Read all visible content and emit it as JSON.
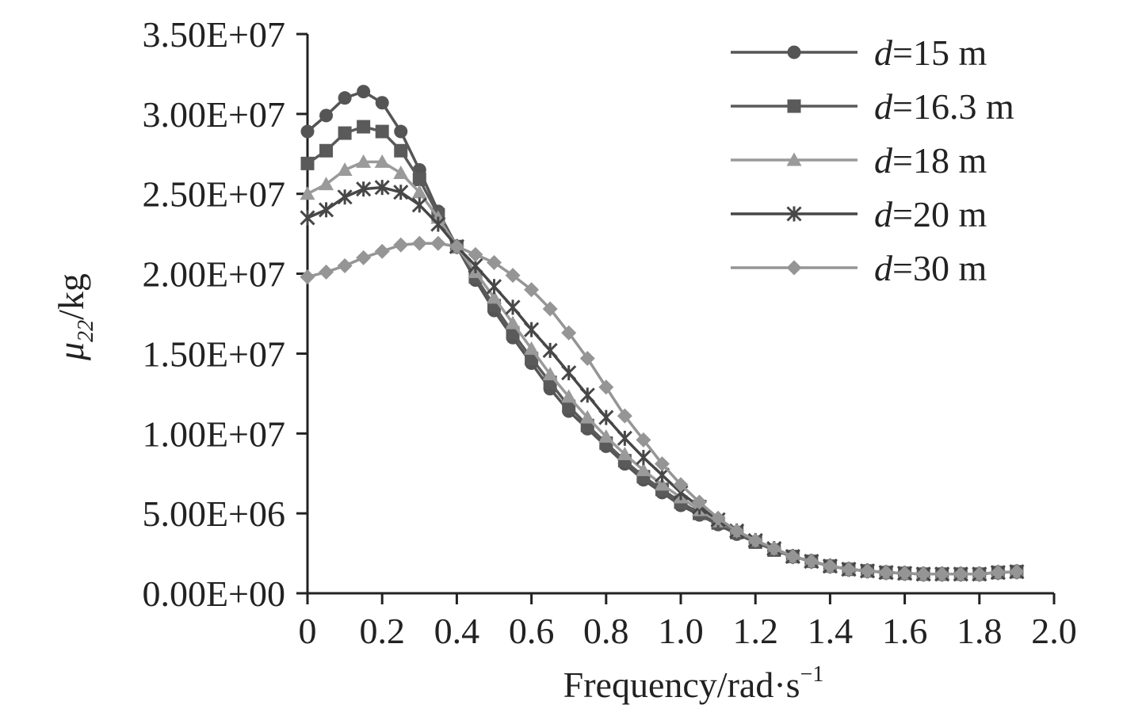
{
  "chart_data": {
    "type": "line",
    "title": "",
    "xlabel": "Frequency/rad·s",
    "xlabel_sup": "−1",
    "ylabel": "μ₂₂/kg",
    "ylabel_symbol": "μ",
    "ylabel_sub": "22",
    "ylabel_unit": "/kg",
    "xlim": [
      0,
      2.0
    ],
    "ylim": [
      0,
      35000000
    ],
    "x_ticks": [
      0,
      0.2,
      0.4,
      0.6,
      0.8,
      1.0,
      1.2,
      1.4,
      1.6,
      1.8,
      2.0
    ],
    "x_tick_labels": [
      "0",
      "0.2",
      "0.4",
      "0.6",
      "0.8",
      "1.0",
      "1.2",
      "1.4",
      "1.6",
      "1.8",
      "2.0"
    ],
    "y_ticks": [
      0,
      5000000,
      10000000,
      15000000,
      20000000,
      25000000,
      30000000,
      35000000
    ],
    "y_tick_labels": [
      "0.00E+00",
      "5.00E+06",
      "1.00E+07",
      "1.50E+07",
      "2.00E+07",
      "2.50E+07",
      "3.00E+07",
      "3.50E+07"
    ],
    "grid": false,
    "legend_position": "top-right",
    "x": [
      0,
      0.05,
      0.1,
      0.15,
      0.2,
      0.25,
      0.3,
      0.35,
      0.4,
      0.45,
      0.5,
      0.55,
      0.6,
      0.65,
      0.7,
      0.75,
      0.8,
      0.85,
      0.9,
      0.95,
      1.0,
      1.05,
      1.1,
      1.15,
      1.2,
      1.25,
      1.3,
      1.35,
      1.4,
      1.45,
      1.5,
      1.55,
      1.6,
      1.65,
      1.7,
      1.75,
      1.8,
      1.85,
      1.9
    ],
    "series": [
      {
        "name": "d=15 m",
        "legend_var": "d",
        "legend_rest": "=15 m",
        "color": "#555555",
        "marker": "circle",
        "values": [
          28900000,
          29900000,
          31000000,
          31400000,
          30700000,
          28900000,
          26500000,
          23900000,
          21700000,
          19600000,
          17700000,
          16000000,
          14400000,
          12800000,
          11400000,
          10300000,
          9200000,
          8100000,
          7100000,
          6300000,
          5500000,
          4900000,
          4300000,
          3700000,
          3200000,
          2700000,
          2300000,
          2000000,
          1700000,
          1500000,
          1400000,
          1300000,
          1250000,
          1200000,
          1200000,
          1200000,
          1200000,
          1300000,
          1350000
        ]
      },
      {
        "name": "d=16.3 m",
        "legend_var": "d",
        "legend_rest": "=16.3 m",
        "color": "#5a5a5a",
        "marker": "square",
        "values": [
          26900000,
          27700000,
          28800000,
          29200000,
          28900000,
          27700000,
          25900000,
          23700000,
          21700000,
          19800000,
          18000000,
          16300000,
          14700000,
          13200000,
          11700000,
          10500000,
          9400000,
          8300000,
          7300000,
          6500000,
          5700000,
          5000000,
          4400000,
          3800000,
          3200000,
          2700000,
          2300000,
          2000000,
          1700000,
          1500000,
          1400000,
          1300000,
          1250000,
          1200000,
          1200000,
          1200000,
          1200000,
          1300000,
          1350000
        ]
      },
      {
        "name": "d=18 m",
        "legend_var": "d",
        "legend_rest": "=18 m",
        "color": "#9a9a9a",
        "marker": "triangle",
        "values": [
          25000000,
          25600000,
          26500000,
          27000000,
          27000000,
          26300000,
          25100000,
          23500000,
          21700000,
          20100000,
          18500000,
          16900000,
          15300000,
          13700000,
          12300000,
          11000000,
          9800000,
          8700000,
          7700000,
          6800000,
          6000000,
          5200000,
          4500000,
          3900000,
          3300000,
          2800000,
          2300000,
          2000000,
          1700000,
          1500000,
          1400000,
          1300000,
          1250000,
          1200000,
          1200000,
          1200000,
          1200000,
          1300000,
          1350000
        ]
      },
      {
        "name": "d=20 m",
        "legend_var": "d",
        "legend_rest": "=20 m",
        "color": "#474747",
        "marker": "star",
        "values": [
          23500000,
          24000000,
          24800000,
          25300000,
          25400000,
          25100000,
          24300000,
          23100000,
          21700000,
          20500000,
          19200000,
          17900000,
          16500000,
          15200000,
          13800000,
          12400000,
          11000000,
          9700000,
          8500000,
          7400000,
          6300000,
          5400000,
          4600000,
          3900000,
          3300000,
          2800000,
          2300000,
          2000000,
          1700000,
          1500000,
          1400000,
          1300000,
          1250000,
          1200000,
          1200000,
          1200000,
          1200000,
          1300000,
          1350000
        ]
      },
      {
        "name": "d=30 m",
        "legend_var": "d",
        "legend_rest": "=30 m",
        "color": "#959595",
        "marker": "diamond",
        "values": [
          19800000,
          20100000,
          20500000,
          21000000,
          21400000,
          21800000,
          21900000,
          21900000,
          21700000,
          21200000,
          20700000,
          19900000,
          19000000,
          17800000,
          16300000,
          14700000,
          12900000,
          11100000,
          9600000,
          8100000,
          6800000,
          5700000,
          4700000,
          3900000,
          3300000,
          2800000,
          2300000,
          2000000,
          1700000,
          1500000,
          1400000,
          1300000,
          1250000,
          1200000,
          1200000,
          1200000,
          1200000,
          1300000,
          1350000
        ]
      }
    ]
  }
}
